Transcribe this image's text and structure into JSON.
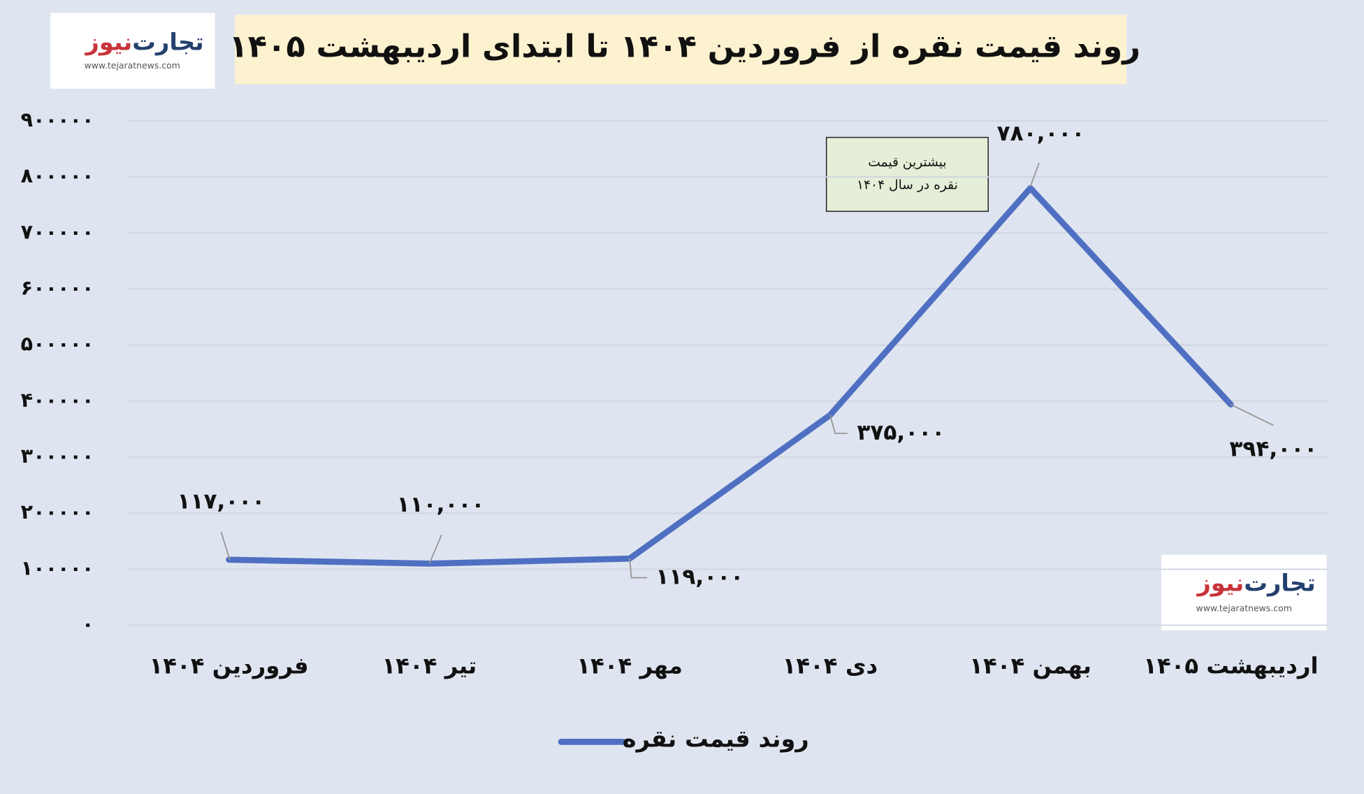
{
  "logo": {
    "name_main": "تجارت",
    "name_accent": "نیوز",
    "url": "www.tejaratnews.com"
  },
  "chart_data": {
    "type": "line",
    "title": "روند قیمت نقره از فروردین ۱۴۰۴ تا ابتدای اردیبهشت ۱۴۰۵",
    "categories": [
      "فروردین ۱۴۰۴",
      "تیر ۱۴۰۴",
      "مهر ۱۴۰۴",
      "دی ۱۴۰۴",
      "بهمن ۱۴۰۴",
      "اردیبهشت ۱۴۰۵"
    ],
    "series": [
      {
        "name": "روند قیمت نقره",
        "color": "#4f70c2",
        "values": [
          117000,
          110000,
          119000,
          375000,
          780000,
          394000
        ],
        "value_labels": [
          "۱۱۷,۰۰۰",
          "۱۱۰,۰۰۰",
          "۱۱۹,۰۰۰",
          "۳۷۵,۰۰۰",
          "۷۸۰,۰۰۰",
          "۳۹۴,۰۰۰"
        ]
      }
    ],
    "ylim": [
      0,
      900000
    ],
    "yticks": [
      {
        "value": 0,
        "label": "۰"
      },
      {
        "value": 100000,
        "label": "۱۰۰۰۰۰"
      },
      {
        "value": 200000,
        "label": "۲۰۰۰۰۰"
      },
      {
        "value": 300000,
        "label": "۳۰۰۰۰۰"
      },
      {
        "value": 400000,
        "label": "۴۰۰۰۰۰"
      },
      {
        "value": 500000,
        "label": "۵۰۰۰۰۰"
      },
      {
        "value": 600000,
        "label": "۶۰۰۰۰۰"
      },
      {
        "value": 700000,
        "label": "۷۰۰۰۰۰"
      },
      {
        "value": 800000,
        "label": "۸۰۰۰۰۰"
      },
      {
        "value": 900000,
        "label": "۹۰۰۰۰۰"
      }
    ],
    "grid": true,
    "legend": "bottom",
    "annotation": [
      "بیشترین قیمت",
      "نقره در سال ۱۴۰۴"
    ]
  }
}
